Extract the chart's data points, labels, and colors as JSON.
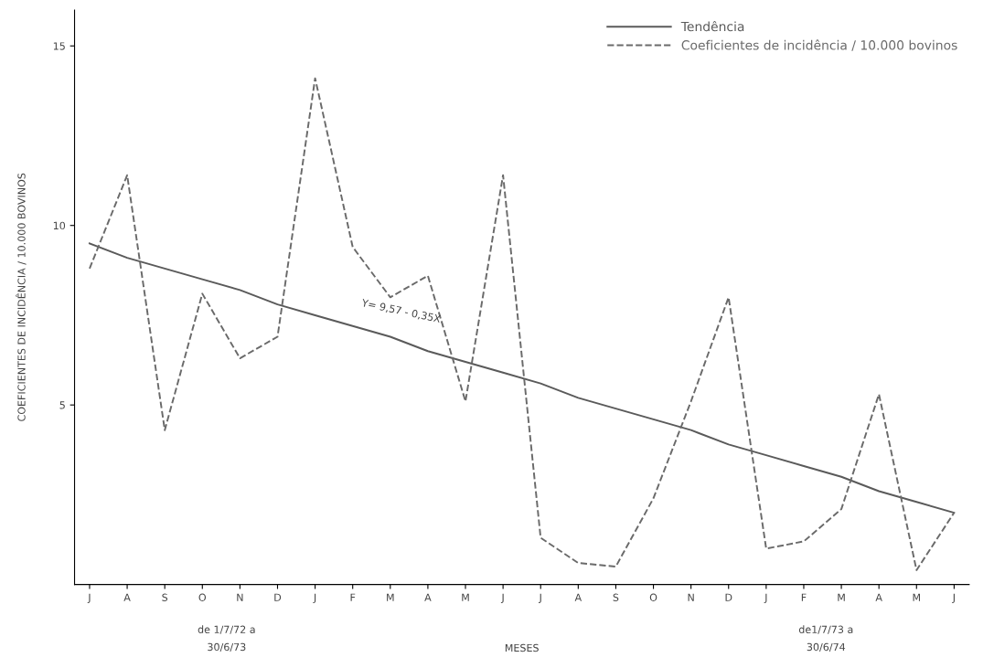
{
  "chart_data": {
    "type": "line",
    "categories": [
      "J",
      "A",
      "S",
      "O",
      "N",
      "D",
      "J",
      "F",
      "M",
      "A",
      "M",
      "J",
      "J",
      "A",
      "S",
      "O",
      "N",
      "D",
      "J",
      "F",
      "M",
      "A",
      "M",
      "J"
    ],
    "series": [
      {
        "name": "Tendência",
        "color": "#5a5a5a",
        "line_style": "solid",
        "values": [
          9.5,
          9.1,
          8.8,
          8.5,
          8.2,
          7.8,
          7.5,
          7.2,
          6.9,
          6.5,
          6.2,
          5.9,
          5.6,
          5.2,
          4.9,
          4.6,
          4.3,
          3.9,
          3.6,
          3.3,
          3.0,
          2.6,
          2.3,
          2.0
        ]
      },
      {
        "name": "Coeficientes de incidência / 10.000 bovinos",
        "color": "#6a6a6a",
        "line_style": "dashed",
        "values": [
          8.8,
          11.4,
          4.3,
          8.1,
          6.3,
          6.9,
          14.1,
          9.4,
          8.0,
          8.6,
          5.1,
          11.4,
          1.3,
          0.6,
          0.5,
          2.4,
          5.1,
          8.0,
          1.0,
          1.2,
          2.1,
          5.3,
          0.4,
          2.0
        ]
      }
    ],
    "xlabel": "MESES",
    "ylabel": "COEFICIENTES DE INCIDÊNCIA / 10.000 BOVINOS",
    "ylim": [
      0,
      16
    ],
    "yticks": [
      5,
      10,
      15
    ],
    "annotations": [
      "Y= 9,57 - 0,35X",
      "de 1/7/72 a\n30/6/73",
      "de1/7/73 a\n30/6/74"
    ],
    "legend": "top right",
    "grid": false,
    "marker": "none"
  }
}
